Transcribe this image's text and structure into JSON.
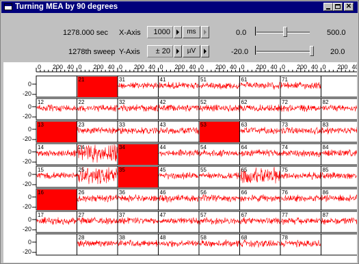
{
  "window": {
    "title": "Turning MEA by 90 degrees",
    "icon": "window-icon",
    "buttons": [
      "minimize",
      "maximize",
      "close"
    ]
  },
  "status": {
    "time": "1278.000 sec",
    "sweep": "1278th sweep"
  },
  "x_axis": {
    "label": "X-Axis",
    "value": "1000",
    "unit": "ms"
  },
  "y_axis": {
    "label": "Y-Axis",
    "value": "± 20",
    "unit": "µV"
  },
  "slider_x": {
    "min_label": "0.0",
    "max_label": "500.0",
    "position_fraction": 0.58
  },
  "slider_y": {
    "min_label": "-20.0",
    "max_label": "20.0",
    "position_fraction": 1.0
  },
  "grid": {
    "columns": 8,
    "rows": 8,
    "trace_color": "#ff0000",
    "top_ticks": [
      "0",
      "200",
      "40",
      "0",
      "200",
      "40",
      "0",
      "200",
      "40",
      "0",
      "200",
      "40",
      "0",
      "200",
      "40",
      "0",
      "200",
      "40",
      "0",
      "200",
      "40",
      "0",
      "200",
      "40"
    ],
    "row_ylabels": {
      "top": "0",
      "bottom": "-20"
    },
    "channels": [
      [
        "",
        "21",
        "31",
        "41",
        "51",
        "61",
        "71",
        ""
      ],
      [
        "12",
        "22",
        "32",
        "42",
        "52",
        "62",
        "72",
        "82"
      ],
      [
        "13",
        "23",
        "33",
        "43",
        "53",
        "63",
        "73",
        "83"
      ],
      [
        "14",
        "24",
        "34",
        "44",
        "54",
        "64",
        "74",
        "84"
      ],
      [
        "15",
        "25",
        "35",
        "45",
        "55",
        "65",
        "75",
        "85"
      ],
      [
        "16",
        "26",
        "36",
        "46",
        "56",
        "66",
        "76",
        "86"
      ],
      [
        "17",
        "27",
        "37",
        "47",
        "57",
        "67",
        "77",
        "87"
      ],
      [
        "",
        "28",
        "38",
        "48",
        "58",
        "68",
        "78",
        ""
      ]
    ],
    "saturated_cells": [
      [
        0,
        1
      ],
      [
        2,
        0
      ],
      [
        2,
        4
      ],
      [
        3,
        2
      ],
      [
        4,
        2
      ],
      [
        5,
        0
      ]
    ],
    "noisy_cells": [
      [
        3,
        1
      ],
      [
        4,
        1
      ],
      [
        4,
        5
      ]
    ]
  }
}
